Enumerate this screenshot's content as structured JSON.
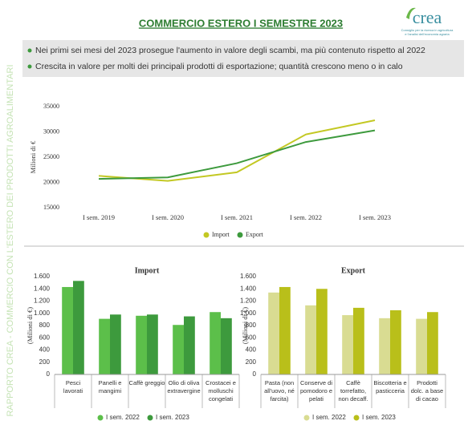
{
  "header": {
    "title": "COMMERCIO ESTERO I SEMESTRE 2023",
    "logo": "crea",
    "logo_subtitle": [
      "Consiglio per la ricerca in agricoltura",
      "e l'analisi dell'economia agraria"
    ],
    "side_text": "RAPPORTO CREA - COMMERCIO CON L'ESTERO DEI PRODOTTI AGROALIMENTARI"
  },
  "bullets": [
    "Nei primi sei mesi del 2023 prosegue l'aumento in valore degli scambi, ma più contenuto rispetto al 2022",
    "Crescita in valore per molti dei principali prodotti di esportazione; quantità crescono meno o in calo"
  ],
  "chart_data": [
    {
      "type": "line",
      "y_label": "Milioni di €",
      "categories": [
        "I sem. 2019",
        "I sem. 2020",
        "I sem. 2021",
        "I sem. 2022",
        "I sem. 2023"
      ],
      "series": [
        {
          "name": "Import",
          "color": "#c3c823",
          "values": [
            21300,
            20300,
            22000,
            29500,
            32300
          ]
        },
        {
          "name": "Export",
          "color": "#3d9a3d",
          "values": [
            20700,
            21000,
            23800,
            28000,
            30300
          ]
        }
      ],
      "ylim": [
        15000,
        35000
      ],
      "yticks": [
        15000,
        20000,
        25000,
        30000,
        35000
      ],
      "grid": false,
      "legend": "bottom"
    },
    {
      "type": "bar",
      "title": "Import",
      "y_label": "(Milioni di €)",
      "categories": [
        "Pesci lavorati",
        "Panelli e mangimi",
        "Caffè greggio",
        "Olio di oliva extravergine",
        "Crostacei e molluschi congelati"
      ],
      "series": [
        {
          "name": "I sem. 2022",
          "color": "#5cbf4a",
          "values": [
            1430,
            910,
            960,
            810,
            1020
          ]
        },
        {
          "name": "I sem. 2023",
          "color": "#3d9a3d",
          "values": [
            1530,
            980,
            980,
            950,
            920
          ]
        }
      ],
      "ylim": [
        0,
        1600
      ],
      "yticks": [
        0,
        200,
        400,
        600,
        800,
        {
          "value": 1000,
          "label": "1.000"
        },
        {
          "value": 1200,
          "label": "1.200"
        },
        {
          "value": 1400,
          "label": "1.400"
        },
        {
          "value": 1600,
          "label": "1.600"
        }
      ],
      "grid": false,
      "legend": "bottom"
    },
    {
      "type": "bar",
      "title": "Export",
      "y_label": "(Milioni di €)",
      "categories": [
        "Pasta (non all'uovo, né farcita)",
        "Conserve di pomodoro e pelati",
        "Caffè torrefatto, non decaff.",
        "Biscotteria e pasticceria",
        "Prodotti dolc. a base di cacao"
      ],
      "series": [
        {
          "name": "I sem. 2022",
          "color": "#d9dc92",
          "values": [
            1340,
            1130,
            970,
            920,
            910
          ]
        },
        {
          "name": "I sem. 2023",
          "color": "#b9bf1a",
          "values": [
            1430,
            1400,
            1090,
            1050,
            1020
          ]
        }
      ],
      "ylim": [
        0,
        1600
      ],
      "yticks": [
        0,
        200,
        400,
        600,
        800,
        {
          "value": 1000,
          "label": "1.000"
        },
        {
          "value": 1200,
          "label": "1.200"
        },
        {
          "value": 1400,
          "label": "1.400"
        },
        {
          "value": 1600,
          "label": "1.600"
        }
      ],
      "grid": false,
      "legend": "bottom"
    }
  ]
}
